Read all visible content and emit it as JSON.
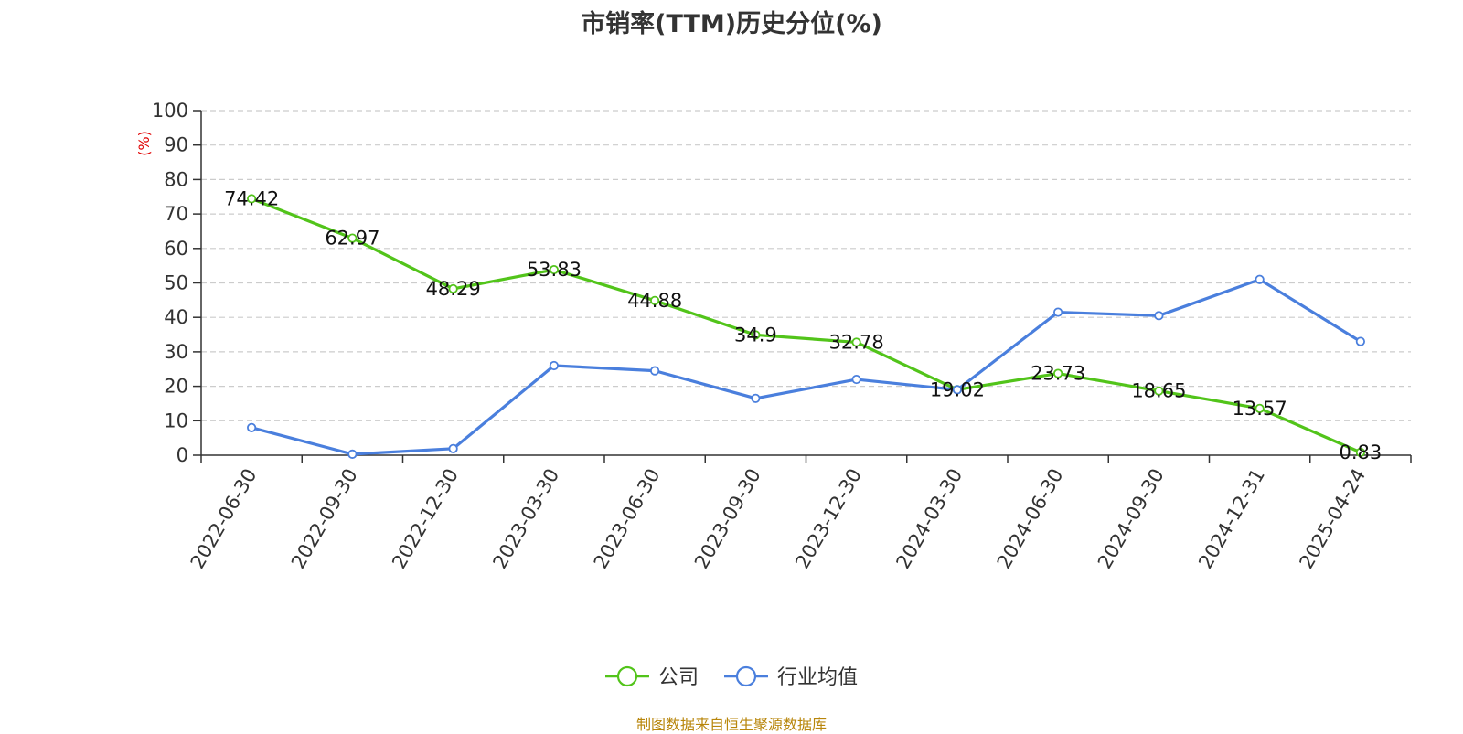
{
  "chart_data": {
    "type": "line",
    "title": "市销率(TTM)历史分位(%)",
    "ylabel": "(%)",
    "ylim": [
      0,
      100
    ],
    "yticks": [
      0,
      10,
      20,
      30,
      40,
      50,
      60,
      70,
      80,
      90,
      100
    ],
    "grid": true,
    "legend_position": "bottom",
    "categories": [
      "2022-06-30",
      "2022-09-30",
      "2022-12-30",
      "2023-03-30",
      "2023-06-30",
      "2023-09-30",
      "2023-12-30",
      "2024-03-30",
      "2024-06-30",
      "2024-09-30",
      "2024-12-31",
      "2025-04-24"
    ],
    "series": [
      {
        "name": "公司",
        "color": "#52c41a",
        "values": [
          74.42,
          62.97,
          48.29,
          53.83,
          44.88,
          34.9,
          32.78,
          19.02,
          23.73,
          18.65,
          13.57,
          0.83
        ],
        "labels": [
          "74.42",
          "62.97",
          "48.29",
          "53.83",
          "44.88",
          "34.9",
          "32.78",
          "19.02",
          "23.73",
          "18.65",
          "13.57",
          "0.83"
        ]
      },
      {
        "name": "行业均值",
        "color": "#4a7fdd",
        "values": [
          8.0,
          0.3,
          1.9,
          26.0,
          24.5,
          16.5,
          22.0,
          19.0,
          41.5,
          40.5,
          51.0,
          33.0
        ]
      }
    ]
  },
  "source_note": "制图数据来自恒生聚源数据库"
}
